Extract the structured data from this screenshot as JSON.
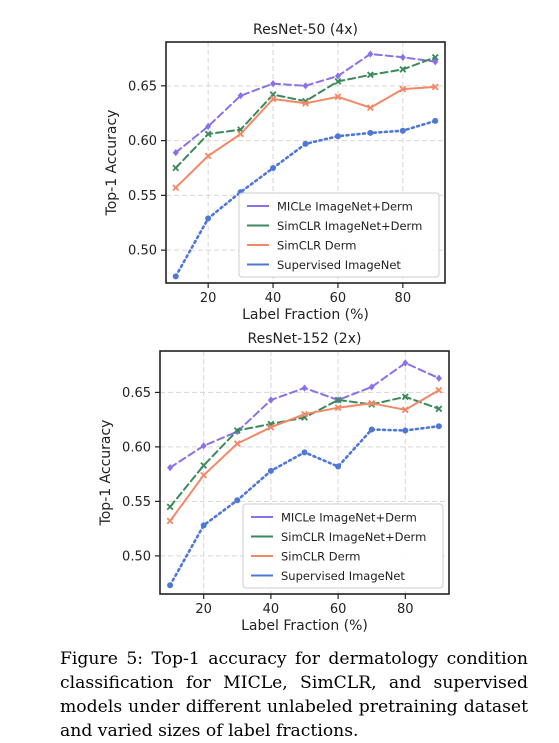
{
  "figure": {
    "caption": "Figure 5: Top-1 accuracy for dermatology condition classification for MICLe, SimCLR, and supervised models under different unlabeled pretraining dataset and varied sizes of label fractions."
  },
  "colors": {
    "MICLe ImageNet+Derm": "#8c70ea",
    "SimCLR ImageNet+Derm": "#3a8a5c",
    "SimCLR Derm": "#f38866",
    "Supervised ImageNet": "#4f78d6",
    "grid": "#d6d6d6",
    "frame": "#222222"
  },
  "chart_data": [
    {
      "type": "line",
      "title": "ResNet-50 (4x)",
      "xlabel": "Label Fraction (%)",
      "ylabel": "Top-1 Accuracy",
      "xlim": [
        7,
        93
      ],
      "ylim": [
        0.47,
        0.69
      ],
      "xticks": [
        20,
        40,
        60,
        80
      ],
      "yticks": [
        0.5,
        0.55,
        0.6,
        0.65
      ],
      "ytick_labels": [
        "0.50",
        "0.55",
        "0.60",
        "0.65"
      ],
      "grid": true,
      "legend_position": "lower-right",
      "x": [
        10,
        20,
        30,
        40,
        50,
        60,
        70,
        80,
        90
      ],
      "series": [
        {
          "name": "MICLe ImageNet+Derm",
          "marker": "diamond",
          "linestyle": "dashed",
          "values": [
            0.589,
            0.613,
            0.641,
            0.652,
            0.65,
            0.659,
            0.679,
            0.676,
            0.672
          ]
        },
        {
          "name": "SimCLR ImageNet+Derm",
          "marker": "x",
          "linestyle": "dashed",
          "values": [
            0.575,
            0.606,
            0.61,
            0.642,
            0.636,
            0.654,
            0.66,
            0.665,
            0.676
          ]
        },
        {
          "name": "SimCLR Derm",
          "marker": "x",
          "linestyle": "solid",
          "values": [
            0.557,
            0.586,
            0.606,
            0.638,
            0.634,
            0.64,
            0.63,
            0.647,
            0.649
          ]
        },
        {
          "name": "Supervised ImageNet",
          "marker": "circle",
          "linestyle": "dotted",
          "values": [
            0.476,
            0.529,
            0.553,
            0.575,
            0.597,
            0.604,
            0.607,
            0.609,
            0.618
          ]
        }
      ]
    },
    {
      "type": "line",
      "title": "ResNet-152 (2x)",
      "xlabel": "Label Fraction (%)",
      "ylabel": "Top-1 Accuracy",
      "xlim": [
        7,
        93
      ],
      "ylim": [
        0.465,
        0.688
      ],
      "xticks": [
        20,
        40,
        60,
        80
      ],
      "yticks": [
        0.5,
        0.55,
        0.6,
        0.65
      ],
      "ytick_labels": [
        "0.50",
        "0.55",
        "0.60",
        "0.65"
      ],
      "grid": true,
      "legend_position": "lower-right",
      "x": [
        10,
        20,
        30,
        40,
        50,
        60,
        70,
        80,
        90
      ],
      "series": [
        {
          "name": "MICLe ImageNet+Derm",
          "marker": "diamond",
          "linestyle": "dashed",
          "values": [
            0.581,
            0.601,
            0.614,
            0.643,
            0.654,
            0.643,
            0.655,
            0.677,
            0.663
          ]
        },
        {
          "name": "SimCLR ImageNet+Derm",
          "marker": "x",
          "linestyle": "dashed",
          "values": [
            0.545,
            0.583,
            0.615,
            0.621,
            0.627,
            0.643,
            0.639,
            0.646,
            0.635
          ]
        },
        {
          "name": "SimCLR Derm",
          "marker": "x",
          "linestyle": "solid",
          "values": [
            0.532,
            0.574,
            0.603,
            0.618,
            0.63,
            0.636,
            0.64,
            0.634,
            0.652
          ]
        },
        {
          "name": "Supervised ImageNet",
          "marker": "circle",
          "linestyle": "dotted",
          "values": [
            0.473,
            0.528,
            0.551,
            0.578,
            0.595,
            0.582,
            0.616,
            0.615,
            0.619
          ]
        }
      ]
    }
  ]
}
